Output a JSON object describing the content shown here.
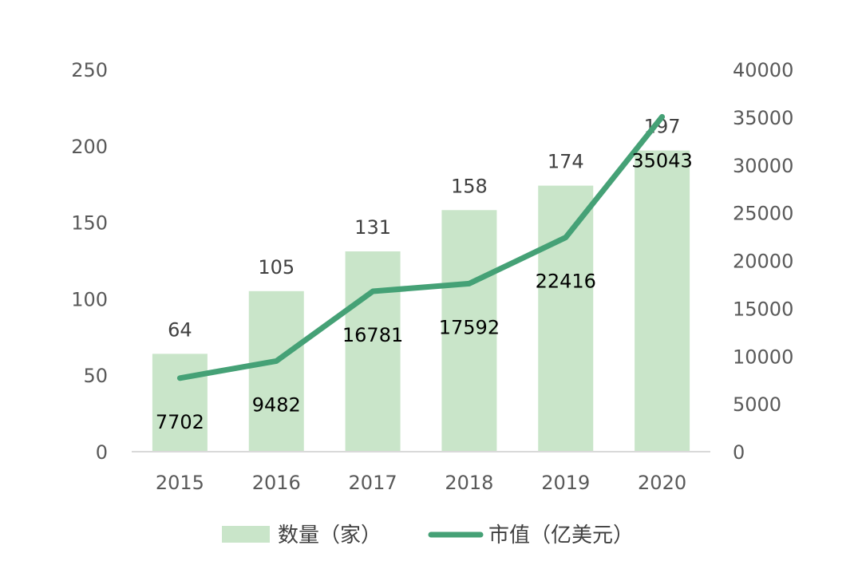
{
  "chart_data": {
    "type": "bar",
    "categories": [
      "2015",
      "2016",
      "2017",
      "2018",
      "2019",
      "2020"
    ],
    "series": [
      {
        "name": "数量（家）",
        "type": "bar",
        "axis": "left",
        "values": [
          64,
          105,
          131,
          158,
          174,
          197
        ],
        "color": "#c9e5c9"
      },
      {
        "name": "市值（亿美元）",
        "type": "line",
        "axis": "right",
        "values": [
          7702,
          9482,
          16781,
          17592,
          22416,
          35043
        ],
        "color": "#45a176"
      }
    ],
    "y_left": {
      "min": 0,
      "max": 250,
      "ticks": [
        "0",
        "50",
        "100",
        "150",
        "200",
        "250"
      ]
    },
    "y_right": {
      "min": 0,
      "max": 40000,
      "ticks": [
        "0",
        "5000",
        "10000",
        "15000",
        "20000",
        "25000",
        "30000",
        "35000",
        "40000"
      ]
    },
    "title": "",
    "xlabel": "",
    "ylabel": "",
    "grid": false,
    "legend_position": "bottom"
  }
}
